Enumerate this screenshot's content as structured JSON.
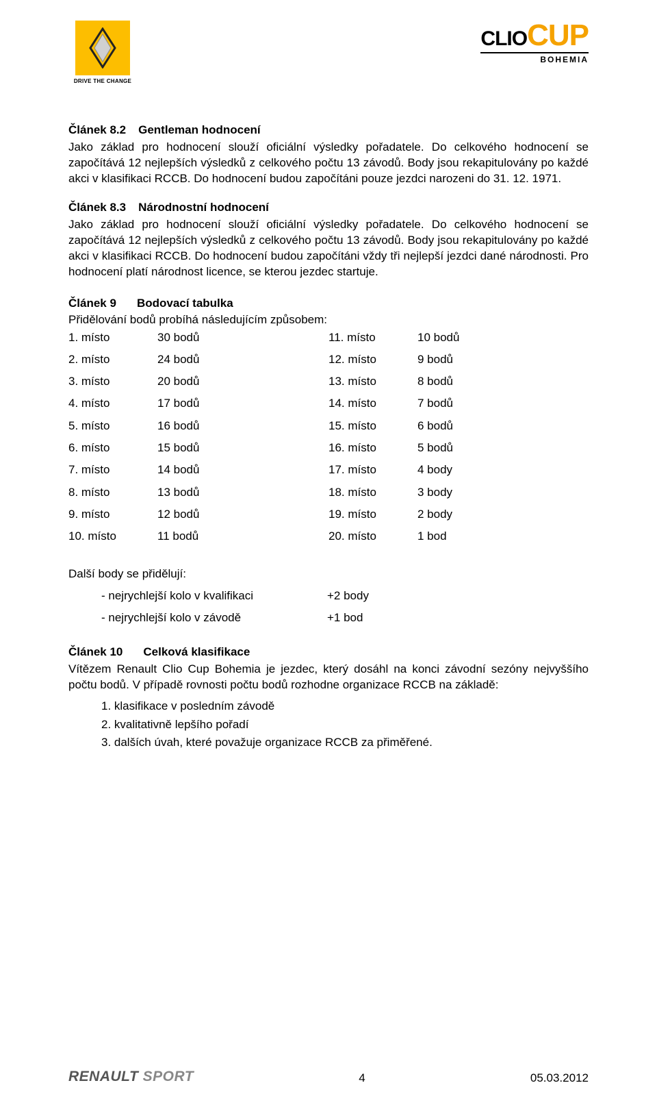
{
  "header": {
    "renault_tag": "DRIVE THE CHANGE",
    "clio": "CLIO",
    "cup": "CUP",
    "bohemia": "BOHEMIA"
  },
  "art82": {
    "heading_num": "Článek 8.2",
    "heading_text": "Gentleman hodnocení",
    "body": "Jako základ pro hodnocení slouží oficiální výsledky pořadatele. Do celkového hodnocení se započítává 12 nejlepších výsledků z celkového počtu 13 závodů. Body jsou rekapitulovány po každé akci v klasifikaci RCCB. Do hodnocení budou započítáni pouze jezdci narozeni do 31. 12. 1971."
  },
  "art83": {
    "heading_num": "Článek 8.3",
    "heading_text": "Národnostní hodnocení",
    "body": "Jako základ pro hodnocení slouží oficiální výsledky pořadatele. Do celkového hodnocení se započítává 12 nejlepších výsledků z celkového počtu 13 závodů. Body jsou rekapitulovány po každé akci v klasifikaci RCCB. Do hodnocení budou započítáni vždy tři nejlepší jezdci dané národnosti. Pro hodnocení platí národnost licence, se kterou jezdec startuje."
  },
  "art9": {
    "heading_num": "Článek 9",
    "heading_text": "Bodovací tabulka",
    "intro": "Přidělování bodů probíhá následujícím způsobem:",
    "left": [
      {
        "p": "1. místo",
        "v": "30 bodů"
      },
      {
        "p": "2. místo",
        "v": "24 bodů"
      },
      {
        "p": "3. místo",
        "v": "20 bodů"
      },
      {
        "p": "4. místo",
        "v": "17 bodů"
      },
      {
        "p": "5. místo",
        "v": "16 bodů"
      },
      {
        "p": "6. místo",
        "v": "15 bodů"
      },
      {
        "p": "7. místo",
        "v": "14 bodů"
      },
      {
        "p": "8. místo",
        "v": "13 bodů"
      },
      {
        "p": "9. místo",
        "v": "12 bodů"
      },
      {
        "p": "10. místo",
        "v": "11 bodů"
      }
    ],
    "right": [
      {
        "p": "11. místo",
        "v": "10 bodů"
      },
      {
        "p": "12. místo",
        "v": "9 bodů"
      },
      {
        "p": "13. místo",
        "v": "8 bodů"
      },
      {
        "p": "14. místo",
        "v": "7 bodů"
      },
      {
        "p": "15. místo",
        "v": "6 bodů"
      },
      {
        "p": "16. místo",
        "v": "5 bodů"
      },
      {
        "p": "17. místo",
        "v": "4 body"
      },
      {
        "p": "18. místo",
        "v": "3 body"
      },
      {
        "p": "19. místo",
        "v": "2 body"
      },
      {
        "p": "20. místo",
        "v": "1 bod"
      }
    ],
    "extra_intro": "Další body se přidělují:",
    "extra": [
      {
        "t": "- nejrychlejší kolo v kvalifikaci",
        "v": "+2 body"
      },
      {
        "t": "- nejrychlejší kolo v závodě",
        "v": "+1 bod"
      }
    ]
  },
  "art10": {
    "heading_num": "Článek 10",
    "heading_text": "Celková klasifikace",
    "body": "Vítězem Renault Clio Cup Bohemia je jezdec, který dosáhl na konci závodní sezóny nejvyššího počtu bodů. V případě rovnosti počtu bodů rozhodne organizace RCCB na základě:",
    "items": [
      "1. klasifikace v posledním závodě",
      "2. kvalitativně lepšího pořadí",
      "3. dalších úvah, které považuje organizace RCCB za přiměřené."
    ]
  },
  "footer": {
    "sport": "RENAULT",
    "sport2": "SPORT",
    "page": "4",
    "date": "05.03.2012"
  }
}
